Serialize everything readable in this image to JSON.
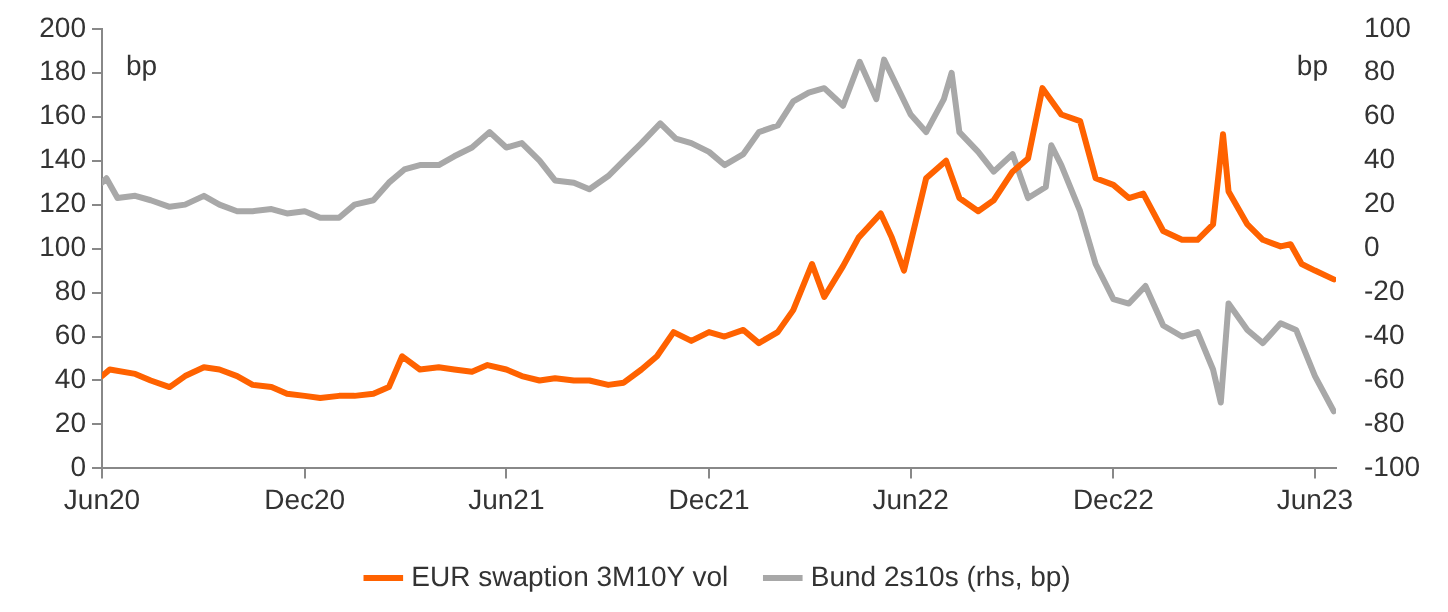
{
  "chart_data": {
    "type": "line",
    "ylabel": "bp",
    "y2label": "bp",
    "xlim": [
      "2020-06-01",
      "2023-06-20"
    ],
    "xticks": [
      {
        "value": "2020-06-01",
        "label": "Jun20"
      },
      {
        "value": "2020-12-01",
        "label": "Dec20"
      },
      {
        "value": "2021-06-01",
        "label": "Jun21"
      },
      {
        "value": "2021-12-01",
        "label": "Dec21"
      },
      {
        "value": "2022-06-01",
        "label": "Jun22"
      },
      {
        "value": "2022-12-01",
        "label": "Dec22"
      },
      {
        "value": "2023-06-01",
        "label": "Jun23"
      }
    ],
    "ylim": [
      0,
      200
    ],
    "yticks": [
      0,
      20,
      40,
      60,
      80,
      100,
      120,
      140,
      160,
      180,
      200
    ],
    "y2lim": [
      -100,
      100
    ],
    "y2ticks": [
      -100,
      -80,
      -60,
      -40,
      -20,
      0,
      20,
      40,
      60,
      80,
      100
    ],
    "grid": false,
    "legend": "bottom",
    "marker": "none",
    "line_style": "solid",
    "series": [
      {
        "name": "EUR swaption 3M10Y vol",
        "color": "#ff6200",
        "x": [
          "2020-06-01",
          "2020-06-08",
          "2020-07-01",
          "2020-07-15",
          "2020-08-01",
          "2020-08-15",
          "2020-09-01",
          "2020-09-15",
          "2020-10-01",
          "2020-10-15",
          "2020-11-01",
          "2020-11-15",
          "2020-12-01",
          "2020-12-15",
          "2021-01-01",
          "2021-01-15",
          "2021-02-01",
          "2021-02-15",
          "2021-02-27",
          "2021-03-15",
          "2021-04-01",
          "2021-04-15",
          "2021-05-01",
          "2021-05-15",
          "2021-06-01",
          "2021-06-15",
          "2021-07-01",
          "2021-07-15",
          "2021-08-01",
          "2021-08-15",
          "2021-09-01",
          "2021-09-15",
          "2021-10-01",
          "2021-10-15",
          "2021-10-30",
          "2021-11-15",
          "2021-12-01",
          "2021-12-15",
          "2022-01-01",
          "2022-01-15",
          "2022-02-01",
          "2022-02-15",
          "2022-03-04",
          "2022-03-15",
          "2022-04-01",
          "2022-04-15",
          "2022-05-05",
          "2022-05-15",
          "2022-05-26",
          "2022-06-15",
          "2022-07-03",
          "2022-07-15",
          "2022-08-01",
          "2022-08-15",
          "2022-09-01",
          "2022-09-15",
          "2022-09-28",
          "2022-10-15",
          "2022-11-01",
          "2022-11-15",
          "2022-12-01",
          "2022-12-15",
          "2022-12-28",
          "2023-01-15",
          "2023-02-01",
          "2023-02-15",
          "2023-03-01",
          "2023-03-10",
          "2023-03-15",
          "2023-04-01",
          "2023-04-15",
          "2023-05-01",
          "2023-05-10",
          "2023-05-20",
          "2023-06-01",
          "2023-06-18"
        ],
        "values": [
          42,
          45,
          43,
          40,
          37,
          42,
          46,
          45,
          42,
          38,
          37,
          34,
          33,
          32,
          33,
          33,
          34,
          37,
          51,
          45,
          46,
          45,
          44,
          47,
          45,
          42,
          40,
          41,
          40,
          40,
          38,
          39,
          45,
          51,
          62,
          58,
          62,
          60,
          63,
          57,
          62,
          72,
          93,
          78,
          92,
          105,
          116,
          105,
          90,
          132,
          140,
          123,
          117,
          122,
          135,
          141,
          173,
          161,
          158,
          132,
          129,
          123,
          125,
          108,
          104,
          104,
          111,
          152,
          126,
          111,
          104,
          101,
          102,
          93,
          90,
          86
        ]
      },
      {
        "name": "Bund 2s10s (rhs, bp)",
        "color": "#a8a8a8",
        "axis": "y2",
        "x": [
          "2020-06-01",
          "2020-06-05",
          "2020-06-15",
          "2020-07-01",
          "2020-07-15",
          "2020-08-01",
          "2020-08-15",
          "2020-09-01",
          "2020-09-15",
          "2020-10-01",
          "2020-10-15",
          "2020-11-01",
          "2020-11-15",
          "2020-12-01",
          "2020-12-15",
          "2021-01-01",
          "2021-01-15",
          "2021-02-01",
          "2021-02-15",
          "2021-03-01",
          "2021-03-15",
          "2021-04-01",
          "2021-04-15",
          "2021-05-01",
          "2021-05-17",
          "2021-06-01",
          "2021-06-15",
          "2021-07-01",
          "2021-07-15",
          "2021-08-01",
          "2021-08-15",
          "2021-09-01",
          "2021-09-15",
          "2021-10-01",
          "2021-10-18",
          "2021-11-01",
          "2021-11-15",
          "2021-12-01",
          "2021-12-15",
          "2022-01-01",
          "2022-01-15",
          "2022-02-01",
          "2022-02-15",
          "2022-03-01",
          "2022-03-15",
          "2022-04-01",
          "2022-04-16",
          "2022-05-01",
          "2022-05-08",
          "2022-06-01",
          "2022-06-15",
          "2022-07-01",
          "2022-07-08",
          "2022-07-15",
          "2022-08-01",
          "2022-08-15",
          "2022-09-01",
          "2022-09-15",
          "2022-10-01",
          "2022-10-06",
          "2022-10-15",
          "2022-11-01",
          "2022-11-15",
          "2022-12-01",
          "2022-12-15",
          "2022-12-30",
          "2023-01-15",
          "2023-02-01",
          "2023-02-15",
          "2023-03-01",
          "2023-03-08",
          "2023-03-15",
          "2023-04-01",
          "2023-04-15",
          "2023-05-01",
          "2023-05-15",
          "2023-06-01",
          "2023-06-18"
        ],
        "values": [
          30,
          32,
          23,
          24,
          22,
          19,
          20,
          24,
          20,
          17,
          17,
          18,
          16,
          17,
          14,
          14,
          20,
          22,
          30,
          36,
          38,
          38,
          42,
          46,
          53,
          46,
          48,
          40,
          31,
          30,
          27,
          33,
          40,
          48,
          57,
          50,
          48,
          44,
          38,
          43,
          53,
          56,
          67,
          71,
          73,
          65,
          85,
          68,
          86,
          61,
          53,
          68,
          80,
          53,
          44,
          35,
          43,
          23,
          28,
          47,
          38,
          17,
          -7,
          -23,
          -25,
          -17,
          -35,
          -40,
          -38,
          -55,
          -70,
          -25,
          -37,
          -43,
          -34,
          -37,
          -58,
          -74
        ]
      }
    ]
  }
}
